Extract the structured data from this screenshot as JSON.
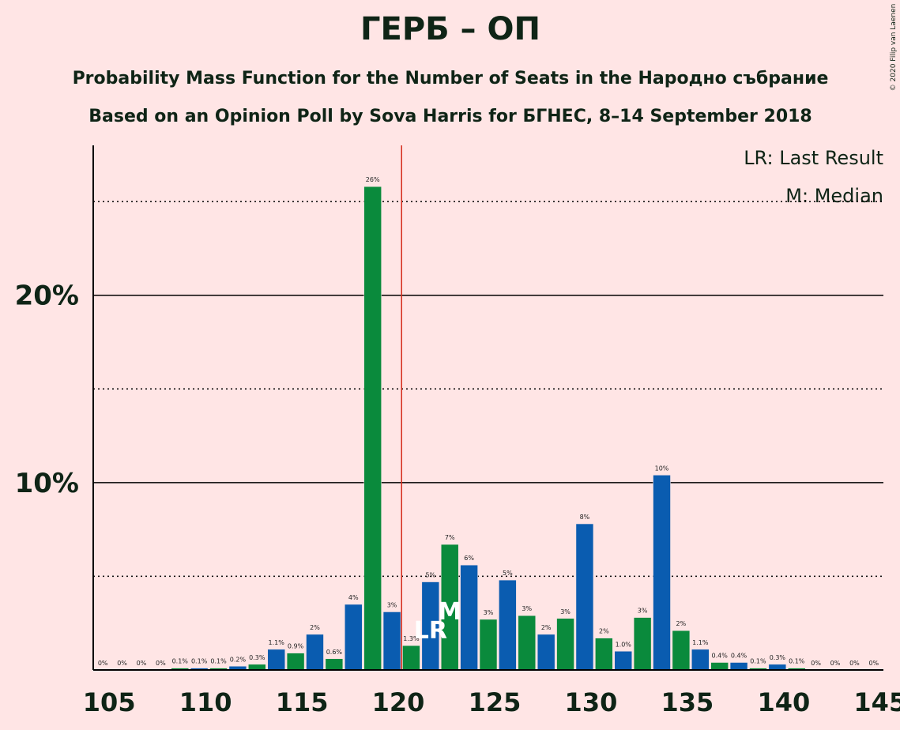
{
  "chart_data": {
    "type": "bar",
    "title": "ГЕРБ – ОП",
    "subtitle": "Probability Mass Function for the Number of Seats in the Народно събрание",
    "subtitle2": "Based on an Opinion Poll by Sova Harris for БГНЕС, 8–14 September 2018",
    "copyright": "© 2020 Filip van Laenen",
    "legend": [
      "LR: Last Result",
      "M: Median"
    ],
    "x": [
      105,
      106,
      107,
      108,
      109,
      110,
      111,
      112,
      113,
      114,
      115,
      116,
      117,
      118,
      119,
      120,
      121,
      122,
      123,
      124,
      125,
      126,
      127,
      128,
      129,
      130,
      131,
      132,
      133,
      134,
      135,
      136,
      137,
      138,
      139,
      140,
      141,
      142,
      143,
      144,
      145
    ],
    "values": [
      0,
      0,
      0,
      0,
      0.1,
      0.1,
      0.1,
      0.2,
      0.3,
      1.1,
      0.9,
      1.9,
      0.6,
      3.5,
      25.8,
      3.1,
      1.3,
      4.7,
      6.7,
      5.6,
      2.7,
      4.8,
      2.9,
      1.9,
      2.75,
      7.8,
      1.7,
      1.0,
      2.8,
      10.4,
      2.1,
      1.1,
      0.4,
      0.4,
      0.1,
      0.3,
      0.1,
      0,
      0,
      0,
      0
    ],
    "value_labels": [
      "0%",
      "0%",
      "0%",
      "0%",
      "0.1%",
      "0.1%",
      "0.1%",
      "0.2%",
      "0.3%",
      "1.1%",
      "0.9%",
      "2%",
      "0.6%",
      "4%",
      "26%",
      "3%",
      "1.3%",
      "5%",
      "7%",
      "6%",
      "3%",
      "5%",
      "3%",
      "2%",
      "3%",
      "8%",
      "2%",
      "1.0%",
      "3%",
      "10%",
      "2%",
      "1.1%",
      "0.4%",
      "0.4%",
      "0.1%",
      "0.3%",
      "0.1%",
      "0%",
      "0%",
      "0%",
      "0%"
    ],
    "colors": [
      "#0a8a3c",
      "#0a5cb0"
    ],
    "xlim": [
      104.5,
      145.5
    ],
    "xticks": [
      105,
      110,
      115,
      120,
      125,
      130,
      135,
      140,
      145
    ],
    "ylim": [
      0,
      28
    ],
    "yticks": [
      {
        "value": 10,
        "label": "10%"
      },
      {
        "value": 20,
        "label": "20%"
      }
    ],
    "minor_yticks": [
      5,
      15,
      25
    ],
    "last_result_line": 120.5,
    "markers": [
      {
        "label": "LR",
        "x": 122
      },
      {
        "label": "M",
        "x": 123
      }
    ]
  }
}
